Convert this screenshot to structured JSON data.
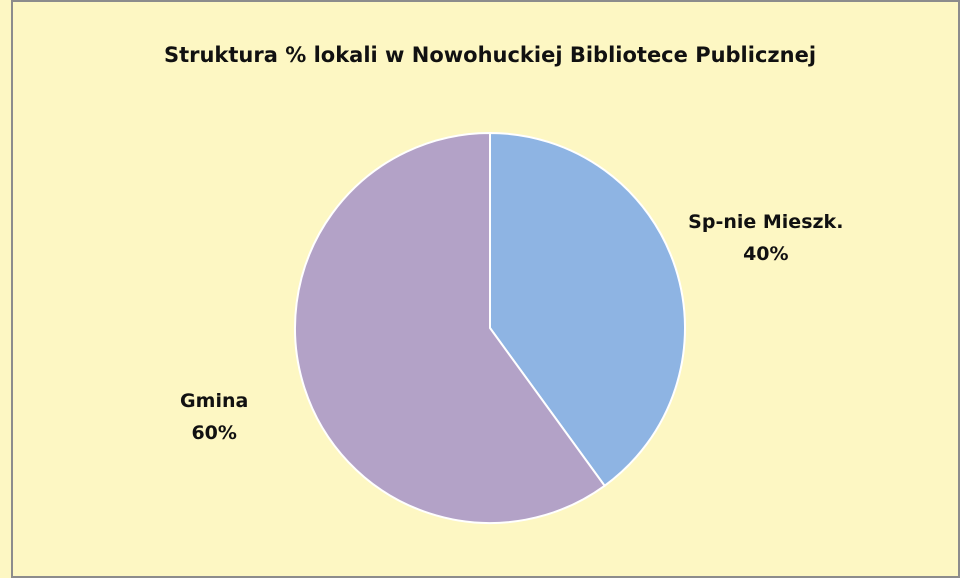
{
  "chart_data": {
    "type": "pie",
    "title": "Struktura % lokali w Nowohuckiej Bibliotece Publicznej",
    "categories": [
      "Sp-nie Mieszk.",
      "Gmina"
    ],
    "values": [
      40,
      60
    ],
    "value_labels": [
      "40%",
      "60%"
    ],
    "colors": [
      "#8eb4e3",
      "#b3a2c7"
    ]
  }
}
